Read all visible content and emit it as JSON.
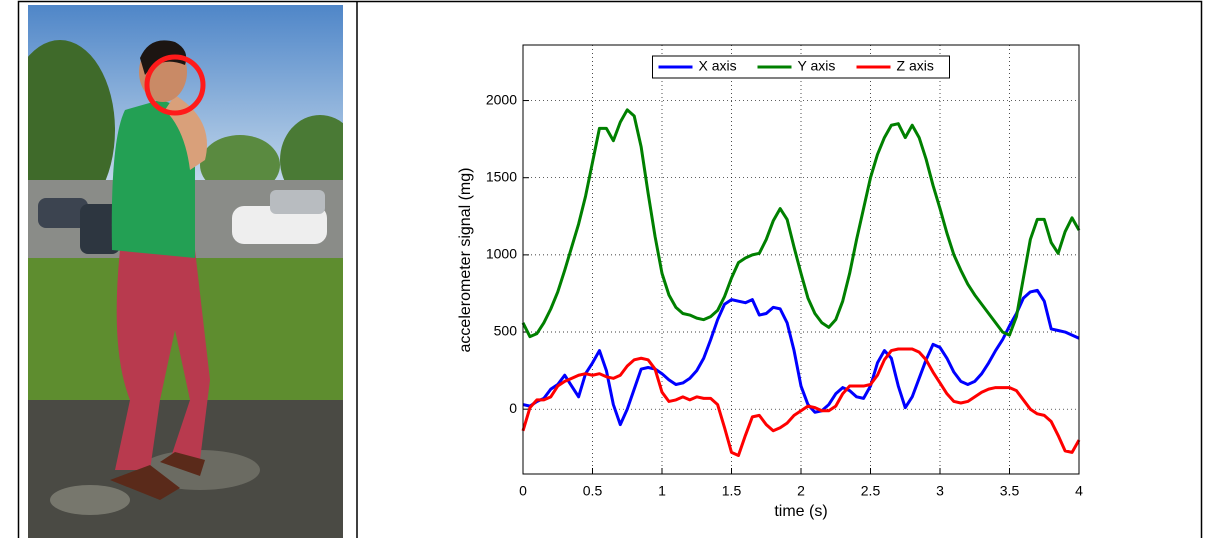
{
  "chart_data": {
    "type": "line",
    "xlabel": "time (s)",
    "ylabel": "accelerometer signal (mg)",
    "x": [
      0,
      0.05,
      0.1,
      0.15,
      0.2,
      0.25,
      0.3,
      0.35,
      0.4,
      0.45,
      0.5,
      0.55,
      0.6,
      0.65,
      0.7,
      0.75,
      0.8,
      0.85,
      0.9,
      0.95,
      1,
      1.05,
      1.1,
      1.15,
      1.2,
      1.25,
      1.3,
      1.35,
      1.4,
      1.45,
      1.5,
      1.55,
      1.6,
      1.65,
      1.7,
      1.75,
      1.8,
      1.85,
      1.9,
      1.95,
      2,
      2.05,
      2.1,
      2.15,
      2.2,
      2.25,
      2.3,
      2.35,
      2.4,
      2.45,
      2.5,
      2.55,
      2.6,
      2.65,
      2.7,
      2.75,
      2.8,
      2.85,
      2.9,
      2.95,
      3,
      3.05,
      3.1,
      3.15,
      3.2,
      3.25,
      3.3,
      3.35,
      3.4,
      3.45,
      3.5,
      3.55,
      3.6,
      3.65,
      3.7,
      3.75,
      3.8,
      3.85,
      3.9,
      3.95,
      4
    ],
    "series": [
      {
        "name": "X axis",
        "color": "#0000ff",
        "values": [
          30,
          20,
          50,
          70,
          130,
          160,
          220,
          150,
          80,
          230,
          300,
          380,
          250,
          30,
          -100,
          0,
          130,
          260,
          270,
          260,
          230,
          190,
          160,
          170,
          200,
          250,
          330,
          450,
          580,
          680,
          710,
          700,
          690,
          710,
          610,
          620,
          660,
          650,
          560,
          380,
          150,
          30,
          -20,
          -10,
          30,
          100,
          140,
          120,
          80,
          70,
          150,
          300,
          380,
          330,
          150,
          10,
          80,
          200,
          320,
          420,
          400,
          330,
          240,
          180,
          160,
          180,
          230,
          300,
          380,
          450,
          540,
          620,
          720,
          760,
          770,
          700,
          520,
          510,
          500,
          480,
          460
        ]
      },
      {
        "name": "Y axis",
        "color": "#008000",
        "values": [
          560,
          470,
          490,
          560,
          650,
          760,
          900,
          1050,
          1200,
          1380,
          1600,
          1820,
          1820,
          1740,
          1860,
          1940,
          1900,
          1700,
          1400,
          1120,
          880,
          740,
          660,
          620,
          610,
          590,
          580,
          600,
          640,
          730,
          850,
          950,
          980,
          1000,
          1010,
          1100,
          1220,
          1300,
          1230,
          1050,
          880,
          720,
          620,
          560,
          530,
          580,
          700,
          880,
          1100,
          1300,
          1500,
          1650,
          1760,
          1840,
          1850,
          1760,
          1840,
          1760,
          1620,
          1450,
          1300,
          1140,
          1000,
          900,
          810,
          740,
          680,
          620,
          560,
          500,
          480,
          600,
          850,
          1100,
          1230,
          1230,
          1080,
          1010,
          1150,
          1240,
          1160
        ]
      },
      {
        "name": "Z axis",
        "color": "#ff0000",
        "values": [
          -140,
          10,
          60,
          60,
          80,
          150,
          180,
          200,
          220,
          230,
          220,
          230,
          210,
          200,
          220,
          280,
          320,
          330,
          320,
          260,
          110,
          50,
          60,
          80,
          60,
          80,
          70,
          70,
          30,
          -120,
          -280,
          -300,
          -170,
          -50,
          -40,
          -100,
          -140,
          -120,
          -90,
          -40,
          -10,
          20,
          10,
          -10,
          -10,
          20,
          100,
          150,
          150,
          150,
          160,
          220,
          320,
          380,
          390,
          390,
          390,
          370,
          320,
          240,
          170,
          100,
          50,
          40,
          50,
          80,
          110,
          130,
          140,
          140,
          140,
          120,
          60,
          0,
          -30,
          -40,
          -80,
          -170,
          -270,
          -280,
          -200
        ]
      }
    ],
    "xlim": [
      0,
      4
    ],
    "xticks": [
      0,
      0.5,
      1,
      1.5,
      2,
      2.5,
      3,
      3.5,
      4
    ],
    "ylim": [
      -420,
      2360
    ],
    "yticks": [
      0,
      500,
      1000,
      1500,
      2000
    ],
    "grid": true,
    "legend": "upper center"
  }
}
